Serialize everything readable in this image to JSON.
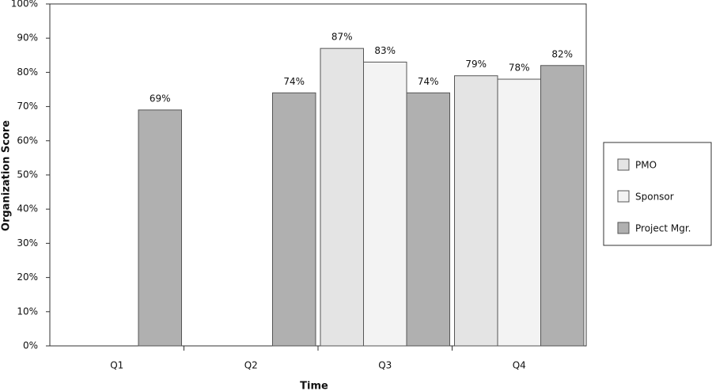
{
  "chart_data": {
    "type": "bar",
    "x_label": "Time",
    "y_label": "Organization Score",
    "categories": [
      "Q1",
      "Q2",
      "Q3",
      "Q4"
    ],
    "series": [
      {
        "name": "PMO",
        "color": "#e4e4e4",
        "values": [
          null,
          null,
          87,
          79
        ],
        "value_labels": [
          null,
          null,
          "87%",
          "79%"
        ]
      },
      {
        "name": "Sponsor",
        "color": "#f3f3f3",
        "values": [
          null,
          null,
          83,
          78
        ],
        "value_labels": [
          null,
          null,
          "83%",
          "78%"
        ]
      },
      {
        "name": "Project Mgr.",
        "color": "#b0b0b0",
        "values": [
          69,
          74,
          74,
          82
        ],
        "value_labels": [
          "69%",
          "74%",
          "74%",
          "82%"
        ]
      }
    ],
    "ylim": [
      0,
      100
    ],
    "yticks": [
      {
        "value": 0,
        "label": "0%"
      },
      {
        "value": 10,
        "label": "10%"
      },
      {
        "value": 20,
        "label": "20%"
      },
      {
        "value": 30,
        "label": "30%"
      },
      {
        "value": 40,
        "label": "40%"
      },
      {
        "value": 50,
        "label": "50%"
      },
      {
        "value": 60,
        "label": "60%"
      },
      {
        "value": 70,
        "label": "70%"
      },
      {
        "value": 80,
        "label": "80%"
      },
      {
        "value": 90,
        "label": "90%"
      },
      {
        "value": 100,
        "label": "100%"
      }
    ],
    "grid": false,
    "legend": "right"
  }
}
